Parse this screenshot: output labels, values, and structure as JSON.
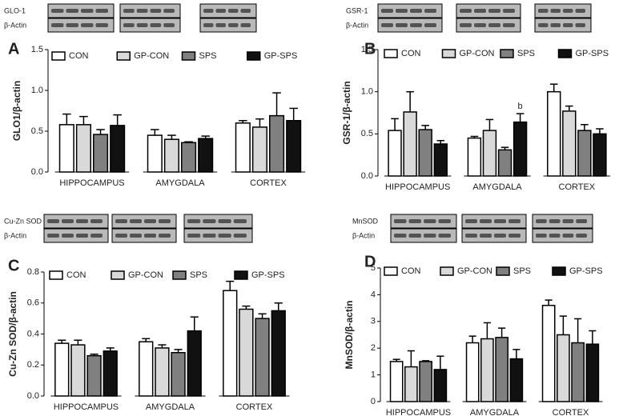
{
  "chart_data": [
    {
      "type": "bar",
      "panel": "A",
      "blot_labels": [
        "GLO-1",
        "β-Actin"
      ],
      "y_label": "GLO1/β-actin",
      "categories": [
        "HIPPOCAMPUS",
        "AMYGDALA",
        "CORTEX"
      ],
      "series": [
        {
          "name": "CON",
          "color": "#ffffff",
          "values": [
            0.58,
            0.45,
            0.6
          ],
          "errors": [
            0.13,
            0.07,
            0.03
          ]
        },
        {
          "name": "GP-CON",
          "color": "#d9d9d9",
          "values": [
            0.58,
            0.4,
            0.55
          ],
          "errors": [
            0.1,
            0.05,
            0.1
          ]
        },
        {
          "name": "SPS",
          "color": "#808080",
          "values": [
            0.46,
            0.36,
            0.69
          ],
          "errors": [
            0.06,
            0.01,
            0.28
          ]
        },
        {
          "name": "GP-SPS",
          "color": "#111111",
          "values": [
            0.57,
            0.41,
            0.63
          ],
          "errors": [
            0.13,
            0.03,
            0.15
          ]
        }
      ],
      "ylim": [
        0,
        1.5
      ],
      "yticks": [
        {
          "value": 0,
          "label": "0.0"
        },
        0.5,
        {
          "value": 1,
          "label": "1.0"
        },
        1.5
      ]
    },
    {
      "type": "bar",
      "panel": "B",
      "blot_labels": [
        "GSR-1",
        "β-Actin"
      ],
      "y_label": "GSR-1/β-actin",
      "annotation": "b",
      "categories": [
        "HIPPOCAMPUS",
        "AMYGDALA",
        "CORTEX"
      ],
      "series": [
        {
          "name": "CON",
          "color": "#ffffff",
          "values": [
            0.54,
            0.45,
            1.0
          ],
          "errors": [
            0.14,
            0.02,
            0.09
          ]
        },
        {
          "name": "GP-CON",
          "color": "#d9d9d9",
          "values": [
            0.76,
            0.54,
            0.77
          ],
          "errors": [
            0.24,
            0.13,
            0.06
          ]
        },
        {
          "name": "SPS",
          "color": "#808080",
          "values": [
            0.55,
            0.31,
            0.54
          ],
          "errors": [
            0.05,
            0.03,
            0.07
          ]
        },
        {
          "name": "GP-SPS",
          "color": "#111111",
          "values": [
            0.38,
            0.64,
            0.5
          ],
          "errors": [
            0.04,
            0.1,
            0.06
          ]
        }
      ],
      "ylim": [
        0,
        1.5
      ],
      "yticks": [
        {
          "value": 0,
          "label": "0.0"
        },
        0.5,
        {
          "value": 1,
          "label": "1.0"
        },
        1.5
      ]
    },
    {
      "type": "bar",
      "panel": "C",
      "blot_labels": [
        "Cu-Zn SOD",
        "β-Actin"
      ],
      "y_label": "Cu-Zn SOD/β-actin",
      "categories": [
        "HIPPOCAMPUS",
        "AMYGDALA",
        "CORTEX"
      ],
      "series": [
        {
          "name": "CON",
          "color": "#ffffff",
          "values": [
            0.34,
            0.35,
            0.68
          ],
          "errors": [
            0.02,
            0.02,
            0.06
          ]
        },
        {
          "name": "GP-CON",
          "color": "#d9d9d9",
          "values": [
            0.33,
            0.31,
            0.56
          ],
          "errors": [
            0.03,
            0.02,
            0.02
          ]
        },
        {
          "name": "SPS",
          "color": "#808080",
          "values": [
            0.26,
            0.28,
            0.5
          ],
          "errors": [
            0.01,
            0.02,
            0.03
          ]
        },
        {
          "name": "GP-SPS",
          "color": "#111111",
          "values": [
            0.29,
            0.42,
            0.55
          ],
          "errors": [
            0.02,
            0.09,
            0.05
          ]
        }
      ],
      "ylim": [
        0,
        0.8
      ],
      "yticks": [
        {
          "value": 0,
          "label": "0.0"
        },
        0.2,
        0.4,
        0.6,
        0.8
      ]
    },
    {
      "type": "bar",
      "panel": "D",
      "blot_labels": [
        "MnSOD",
        "β-Actin"
      ],
      "y_label": "MnSOD/β-actin",
      "categories": [
        "HIPPOCAMPUS",
        "AMYGDALA",
        "CORTEX"
      ],
      "series": [
        {
          "name": "CON",
          "color": "#ffffff",
          "values": [
            1.5,
            2.2,
            3.6
          ],
          "errors": [
            0.08,
            0.25,
            0.2
          ]
        },
        {
          "name": "GP-CON",
          "color": "#d9d9d9",
          "values": [
            1.3,
            2.35,
            2.5
          ],
          "errors": [
            0.6,
            0.6,
            0.7
          ]
        },
        {
          "name": "SPS",
          "color": "#808080",
          "values": [
            1.5,
            2.4,
            2.2
          ],
          "errors": [
            0.03,
            0.35,
            0.9
          ]
        },
        {
          "name": "GP-SPS",
          "color": "#111111",
          "values": [
            1.2,
            1.6,
            2.15
          ],
          "errors": [
            0.5,
            0.35,
            0.5
          ]
        }
      ],
      "ylim": [
        0,
        5
      ],
      "yticks": [
        0,
        1,
        2,
        3,
        4,
        5
      ]
    }
  ]
}
